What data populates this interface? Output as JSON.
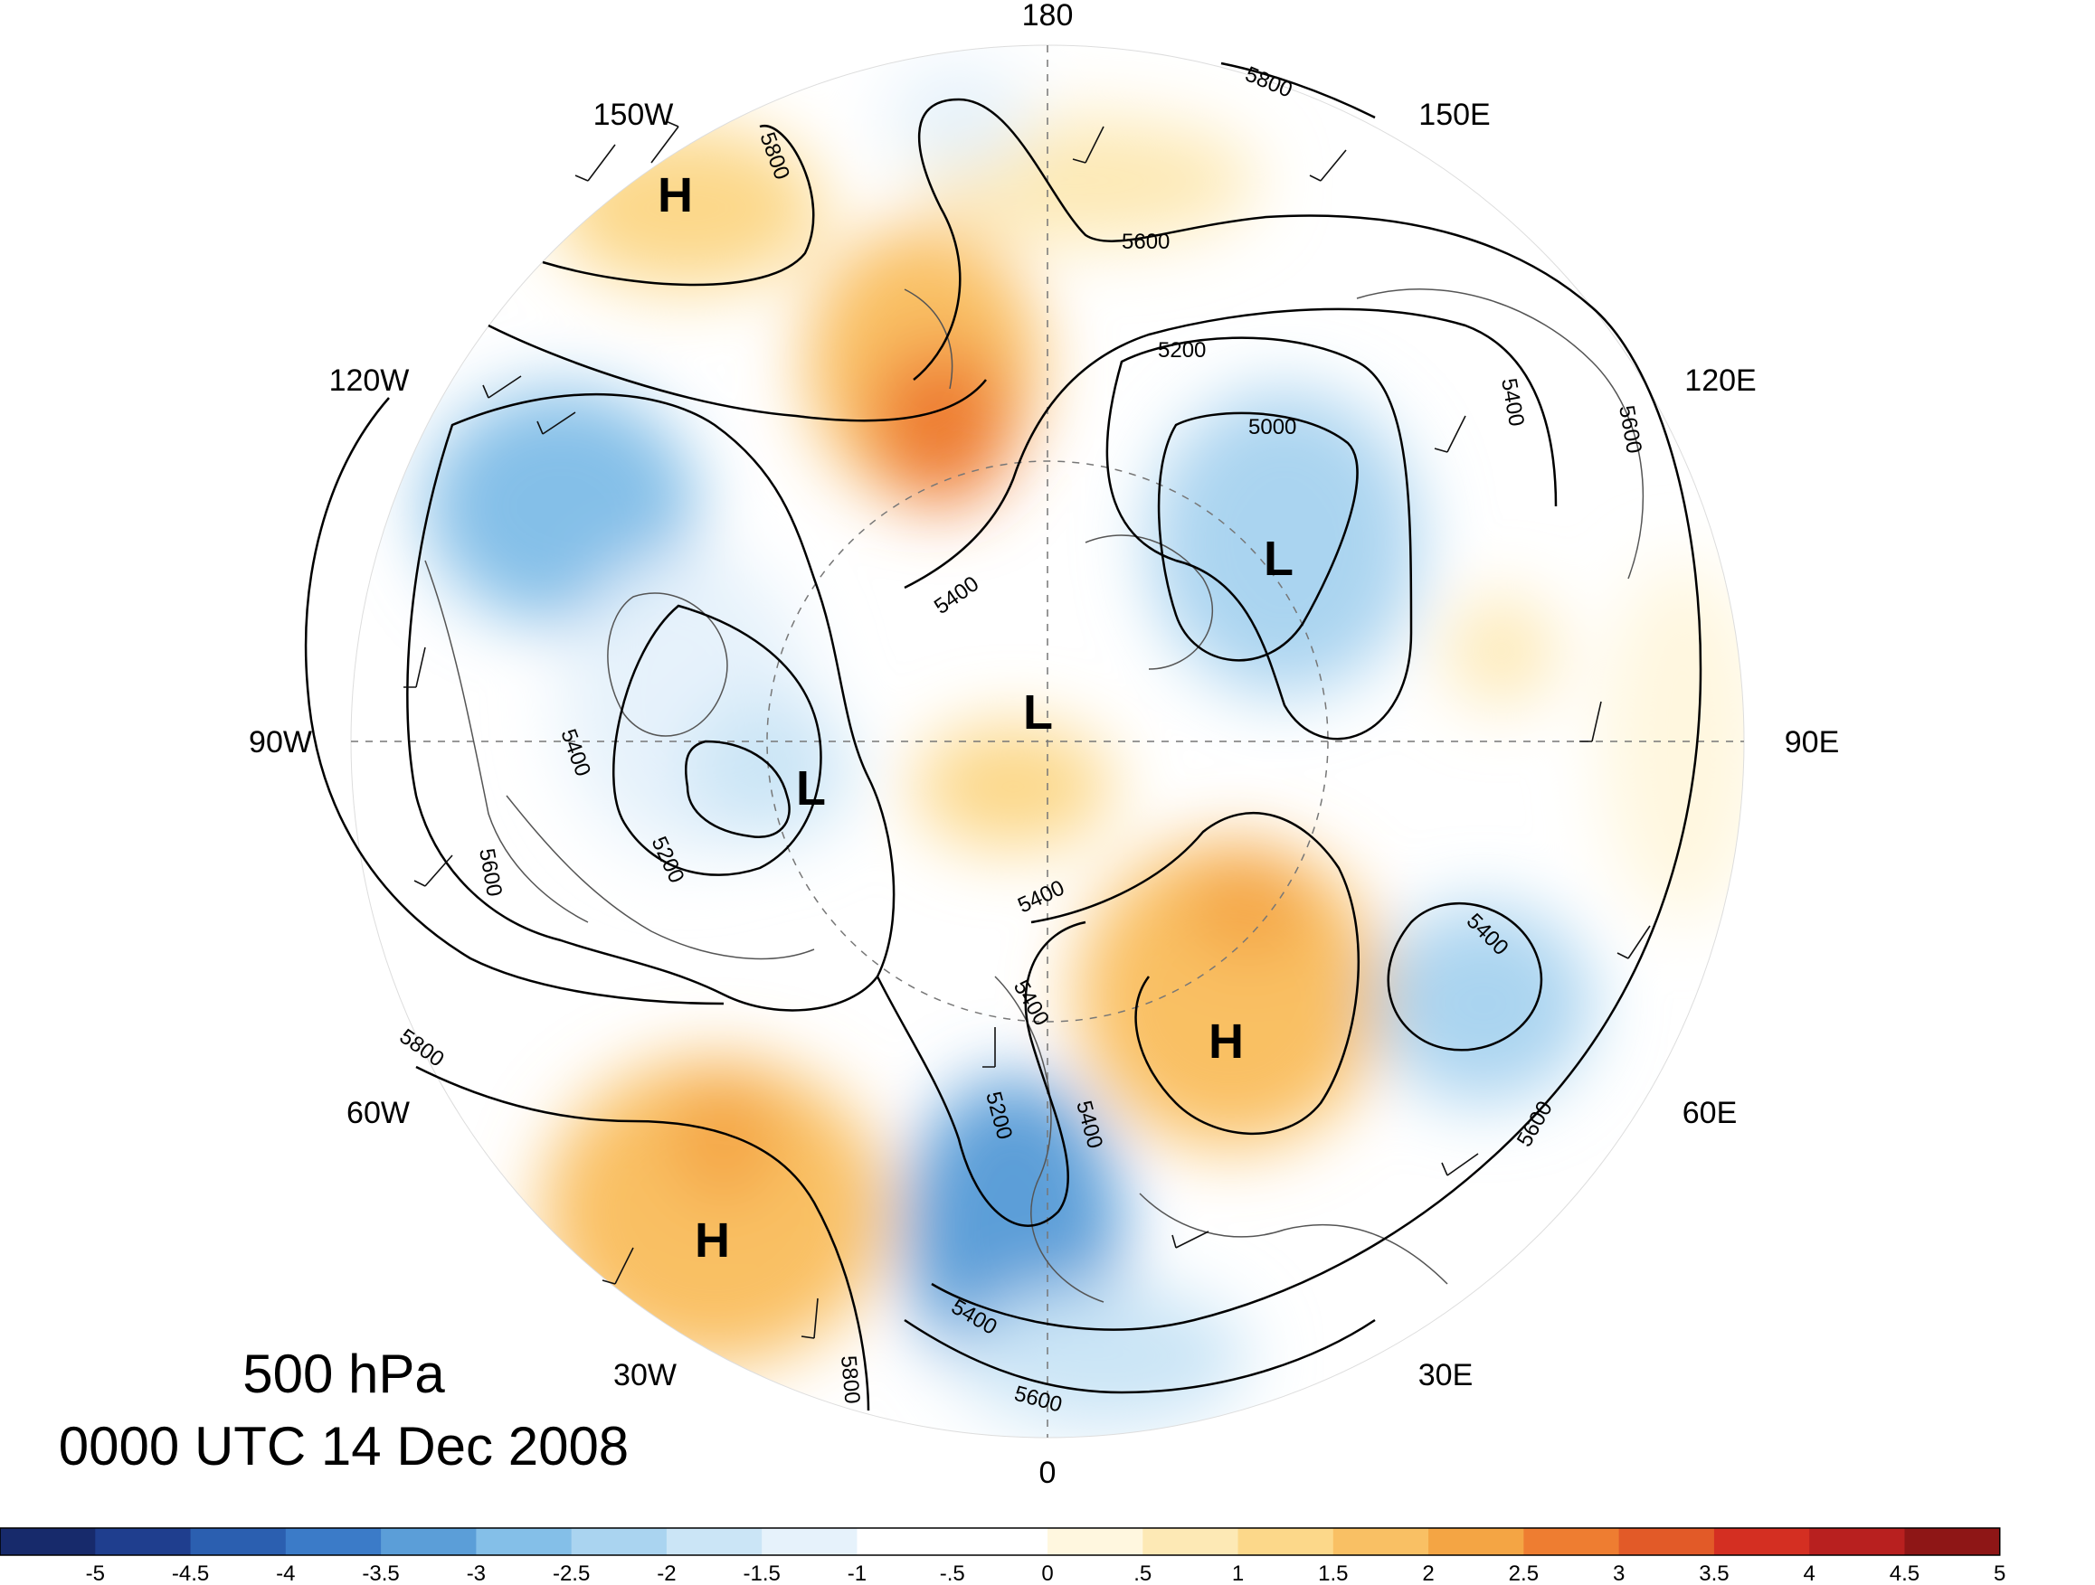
{
  "map": {
    "level": "500 hPa",
    "valid_time": "0000 UTC 14 Dec 2008",
    "projection": "north polar stereographic",
    "longitude_labels": [
      "180",
      "150E",
      "120E",
      "90E",
      "60E",
      "30E",
      "0",
      "30W",
      "60W",
      "90W",
      "120W",
      "150W"
    ],
    "contour_values": [
      "5000",
      "5200",
      "5400",
      "5600",
      "5800"
    ],
    "pressure_centers": [
      {
        "type": "H",
        "region": "north pacific"
      },
      {
        "type": "H",
        "region": "north atlantic"
      },
      {
        "type": "H",
        "region": "eastern europe"
      },
      {
        "type": "L",
        "region": "siberia"
      },
      {
        "type": "L",
        "region": "north pole"
      },
      {
        "type": "L",
        "region": "hudson bay"
      }
    ],
    "colorbar": {
      "labels": [
        "-5",
        "-4.5",
        "-4",
        "-3.5",
        "-3",
        "-2.5",
        "-2",
        "-1.5",
        "-1",
        "-.5",
        "0",
        ".5",
        "1",
        "1.5",
        "2",
        "2.5",
        "3",
        "3.5",
        "4",
        "4.5",
        "5"
      ],
      "colors": [
        "#172a6b",
        "#1f3e8e",
        "#2b5fb0",
        "#3b7bc8",
        "#5b9ed8",
        "#84bfe8",
        "#aad4f0",
        "#cbe5f6",
        "#e6f2fb",
        "#ffffff",
        "#ffffff",
        "#fff7df",
        "#fde9b5",
        "#fcd88a",
        "#f9c064",
        "#f4a544",
        "#ee7d31",
        "#e25a28",
        "#d42f22",
        "#b8201f",
        "#8e1616"
      ]
    },
    "colors": {
      "contour": "#000000",
      "coastline": "#555555",
      "barb": "#111111"
    }
  }
}
